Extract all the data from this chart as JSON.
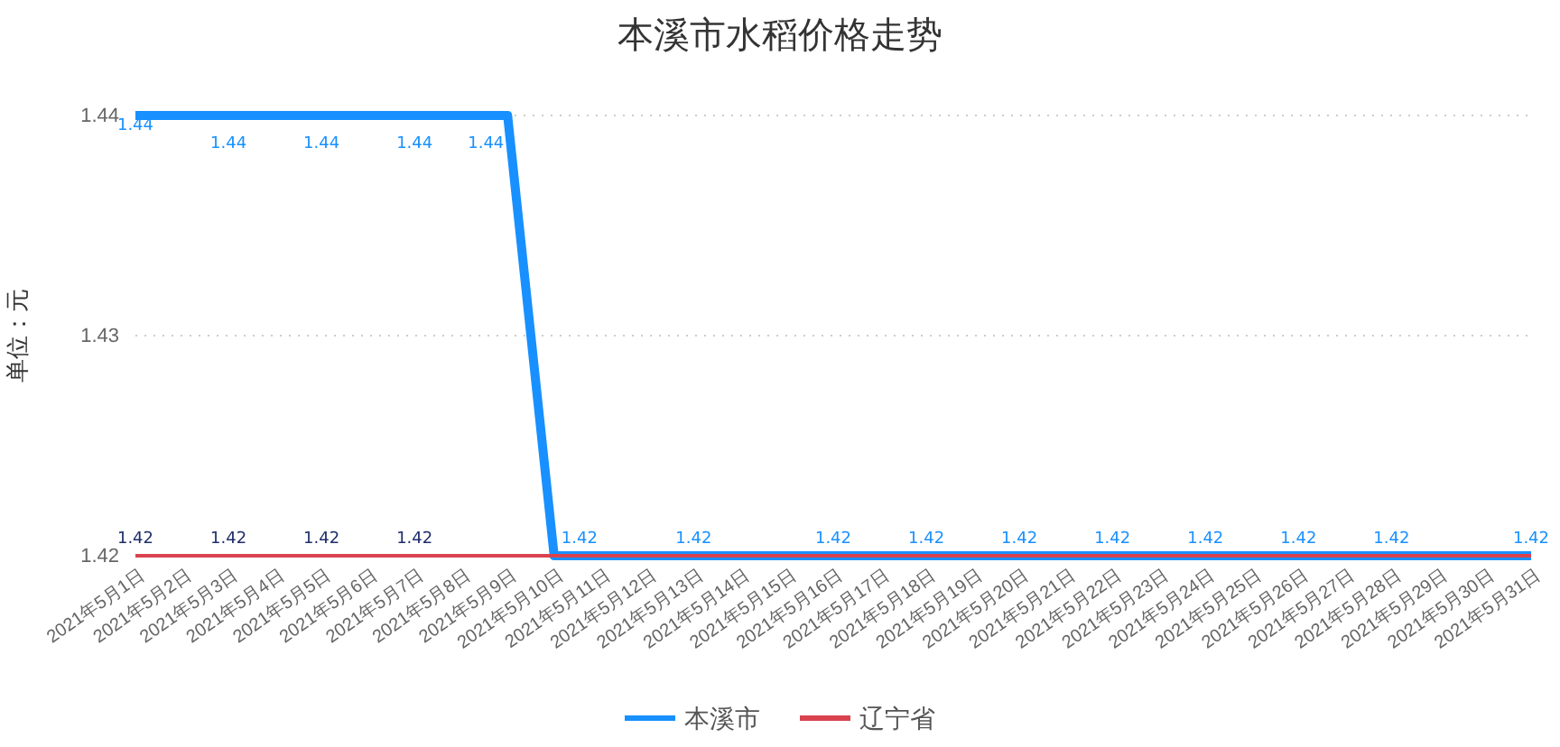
{
  "chart_data": {
    "type": "line",
    "title": "本溪市水稻价格走势",
    "ylabel": "单位：元",
    "categories": [
      "2021年5月1日",
      "2021年5月2日",
      "2021年5月3日",
      "2021年5月4日",
      "2021年5月5日",
      "2021年5月6日",
      "2021年5月7日",
      "2021年5月8日",
      "2021年5月9日",
      "2021年5月10日",
      "2021年5月11日",
      "2021年5月12日",
      "2021年5月13日",
      "2021年5月14日",
      "2021年5月15日",
      "2021年5月16日",
      "2021年5月17日",
      "2021年5月18日",
      "2021年5月19日",
      "2021年5月20日",
      "2021年5月21日",
      "2021年5月22日",
      "2021年5月23日",
      "2021年5月24日",
      "2021年5月25日",
      "2021年5月26日",
      "2021年5月27日",
      "2021年5月28日",
      "2021年5月29日",
      "2021年5月30日",
      "2021年5月31日"
    ],
    "series": [
      {
        "name": "本溪市",
        "color": "#1890ff",
        "values": [
          1.44,
          1.44,
          1.44,
          1.44,
          1.44,
          1.44,
          1.44,
          1.44,
          1.44,
          1.42,
          1.42,
          1.42,
          1.42,
          1.42,
          1.42,
          1.42,
          1.42,
          1.42,
          1.42,
          1.42,
          1.42,
          1.42,
          1.42,
          1.42,
          1.42,
          1.42,
          1.42,
          1.42,
          1.42,
          1.42,
          1.42
        ],
        "value_labels": [
          "1.44",
          null,
          "1.44",
          null,
          "1.44",
          null,
          "1.44",
          null,
          "1.44",
          "1.42",
          null,
          null,
          "1.42",
          null,
          null,
          "1.42",
          null,
          "1.42",
          null,
          "1.42",
          null,
          "1.42",
          null,
          "1.42",
          null,
          "1.42",
          null,
          "1.42",
          null,
          null,
          "1.42"
        ]
      },
      {
        "name": "辽宁省",
        "color": "#d9434f",
        "values": [
          1.42,
          1.42,
          1.42,
          1.42,
          1.42,
          1.42,
          1.42,
          1.42,
          1.42,
          1.42,
          1.42,
          1.42,
          1.42,
          1.42,
          1.42,
          1.42,
          1.42,
          1.42,
          1.42,
          1.42,
          1.42,
          1.42,
          1.42,
          1.42,
          1.42,
          1.42,
          1.42,
          1.42,
          1.42,
          1.42,
          1.42
        ],
        "value_labels": [
          "1.42",
          null,
          "1.42",
          null,
          "1.42",
          null,
          "1.42",
          null,
          null,
          null,
          null,
          null,
          null,
          null,
          null,
          null,
          null,
          null,
          null,
          null,
          null,
          null,
          null,
          null,
          null,
          null,
          null,
          null,
          null,
          null,
          null
        ]
      }
    ],
    "ylim": [
      1.42,
      1.44
    ],
    "yticks": [
      1.42,
      1.43,
      1.44
    ],
    "grid": "y",
    "legend": "bottom",
    "line_style": "solid",
    "marker": "none"
  }
}
